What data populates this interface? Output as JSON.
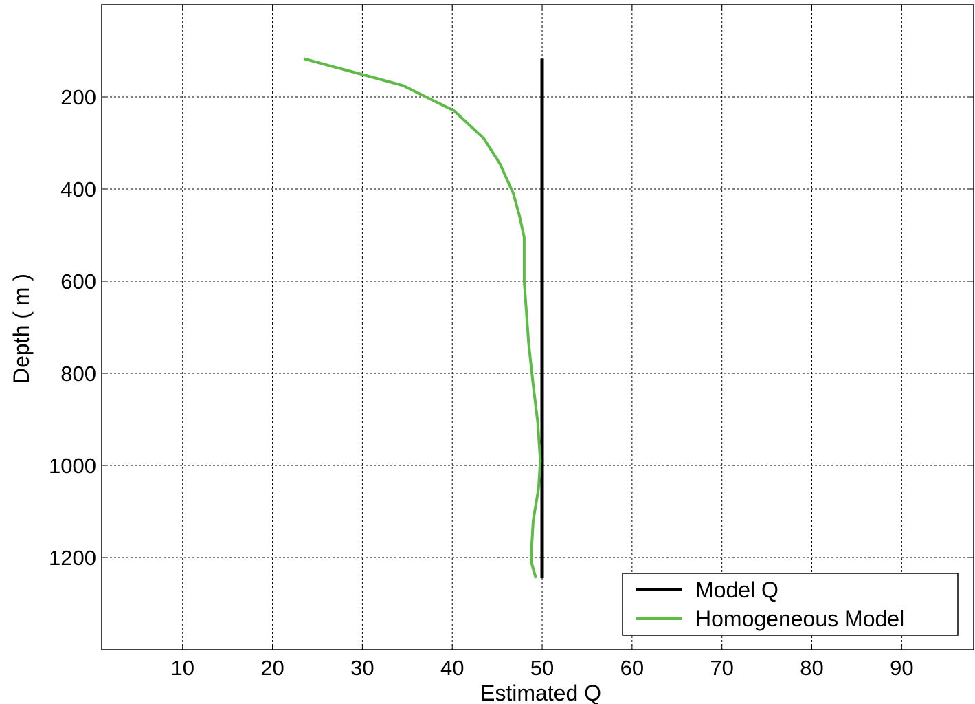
{
  "chart_data": {
    "type": "line",
    "title": "",
    "xlabel": "Estimated Q",
    "ylabel": "Depth ( m )",
    "xlim": [
      1,
      98
    ],
    "ylim": [
      1400,
      0
    ],
    "y_inverted": true,
    "grid": true,
    "legend_position": "bottom-right",
    "xticks": [
      10,
      20,
      30,
      40,
      50,
      60,
      70,
      80,
      90
    ],
    "yticks": [
      200,
      400,
      600,
      800,
      1000,
      1200
    ],
    "xtick_labels": [
      "10",
      "20",
      "30",
      "40",
      "50",
      "60",
      "70",
      "80",
      "90"
    ],
    "ytick_labels": [
      "200",
      "400",
      "600",
      "800",
      "1000",
      "1200"
    ],
    "series": [
      {
        "name": "Model Q",
        "color": "#000000",
        "x": [
          50,
          50
        ],
        "y": [
          117,
          1245
        ]
      },
      {
        "name": "Homogeneous Model",
        "color": "#5dbb46",
        "x": [
          23.5,
          34.5,
          40.2,
          43.5,
          45.3,
          46.8,
          47.5,
          48.0,
          48.0,
          48.5,
          49.0,
          49.5,
          49.8,
          49.6,
          49.0,
          48.8,
          48.8,
          49.3
        ],
        "y": [
          117,
          175,
          230,
          290,
          345,
          410,
          460,
          505,
          600,
          735,
          825,
          905,
          990,
          1050,
          1120,
          1190,
          1210,
          1245
        ]
      }
    ]
  }
}
